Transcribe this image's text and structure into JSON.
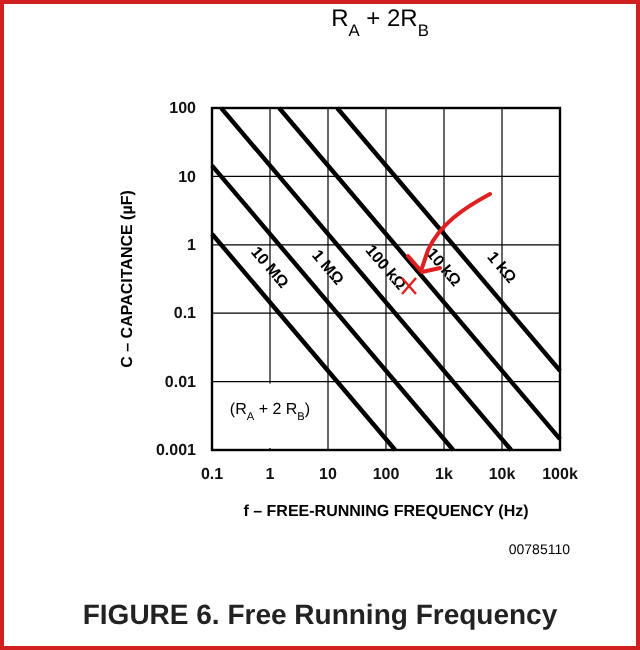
{
  "chart_data": {
    "type": "line",
    "title": "FIGURE 6. Free Running Frequency",
    "xlabel": "f – FREE-RUNNING FREQUENCY (Hz)",
    "ylabel": "C – CAPACITANCE (µF)",
    "annotations": [
      "R$_{A}$ + 2R$_{B}$",
      "(R$_{A}$ + 2 R$_{B}$)",
      "00785110"
    ],
    "log": "xy",
    "grid": true,
    "legend": false,
    "marker": "none",
    "line_style": "solid",
    "xlim": [
      0.1,
      100000
    ],
    "ylim": [
      0.001,
      100
    ],
    "xticks": [
      0.1,
      1,
      10,
      100,
      {
        "value": 1000,
        "label": "1k"
      },
      {
        "value": 10000,
        "label": "10k"
      },
      {
        "value": 100000,
        "label": "100k"
      }
    ],
    "yticks": [
      0.001,
      0.01,
      0.1,
      1,
      10,
      100
    ],
    "series": [
      {
        "name": "10 MΩ",
        "color": "#000000",
        "x": [
          0.1,
          144
        ],
        "values": [
          1.44,
          0.001
        ]
      },
      {
        "name": "1 MΩ",
        "color": "#000000",
        "x": [
          0.1,
          1440
        ],
        "values": [
          14.4,
          0.001
        ]
      },
      {
        "name": "100 kΩ",
        "color": "#000000",
        "x": [
          0.144,
          14400
        ],
        "values": [
          100,
          0.001
        ]
      },
      {
        "name": "10 kΩ",
        "color": "#000000",
        "x": [
          1.44,
          100000
        ],
        "values": [
          100,
          0.00144
        ]
      },
      {
        "name": "1 kΩ",
        "color": "#000000",
        "x": [
          14.4,
          100000
        ],
        "values": [
          100,
          0.0144
        ]
      }
    ]
  }
}
